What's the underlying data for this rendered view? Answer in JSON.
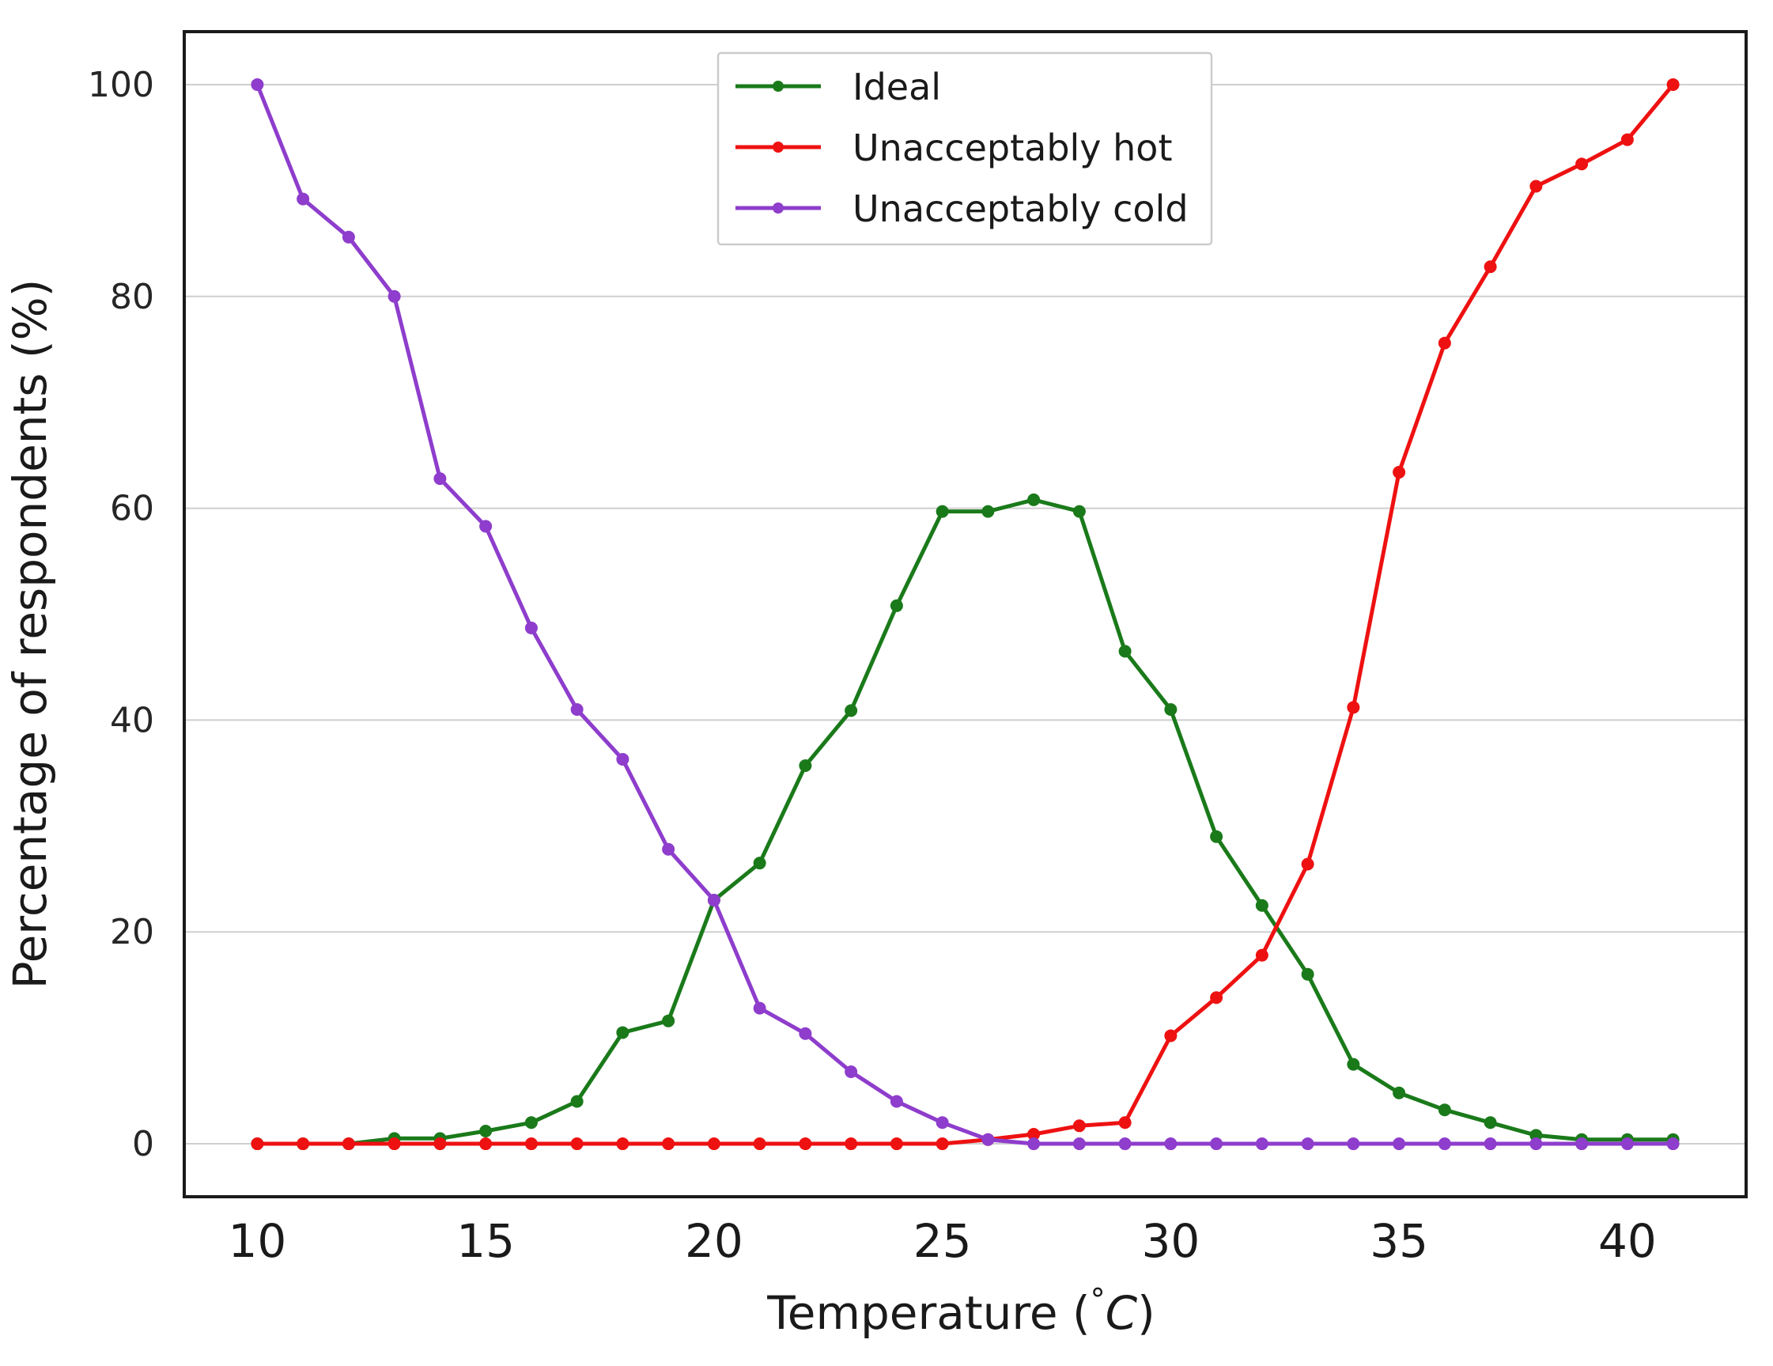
{
  "chart_data": {
    "type": "line",
    "title": "",
    "xlabel": "Temperature (°C)",
    "xlabel_main": "Temperature (",
    "xlabel_degree": "°",
    "xlabel_unit": "C",
    "xlabel_close": ")",
    "ylabel": "Percentage of respondents (%)",
    "xlim": [
      8.4,
      42.6
    ],
    "ylim": [
      -5,
      105
    ],
    "xticks": [
      10,
      15,
      20,
      25,
      30,
      35,
      40
    ],
    "yticks": [
      0,
      20,
      40,
      60,
      80,
      100
    ],
    "grid": "horizontal",
    "legend_position": "top-center",
    "x": [
      10,
      11,
      12,
      13,
      14,
      15,
      16,
      17,
      18,
      19,
      20,
      21,
      22,
      23,
      24,
      25,
      26,
      27,
      28,
      29,
      30,
      31,
      32,
      33,
      34,
      35,
      36,
      37,
      38,
      39,
      40,
      41
    ],
    "series": [
      {
        "name": "Ideal",
        "color": "#1a7a1a",
        "values": [
          0,
          0,
          0,
          0.5,
          0.5,
          1.2,
          2,
          4,
          10.5,
          11.6,
          23,
          26.5,
          35.7,
          40.9,
          50.8,
          59.7,
          59.7,
          60.8,
          59.7,
          46.5,
          41,
          29,
          22.5,
          16,
          7.5,
          4.8,
          3.2,
          2,
          0.8,
          0.4,
          0.4,
          0.4
        ]
      },
      {
        "name": "Unacceptably hot",
        "color": "#ee1111",
        "values": [
          0,
          0,
          0,
          0,
          0,
          0,
          0,
          0,
          0,
          0,
          0,
          0,
          0,
          0,
          0,
          0,
          0.4,
          0.9,
          1.7,
          2,
          10.2,
          13.8,
          17.8,
          26.4,
          41.2,
          63.4,
          75.6,
          82.8,
          90.4,
          92.5,
          94.8,
          100
        ]
      },
      {
        "name": "Unacceptably cold",
        "color": "#8e3dcc",
        "values": [
          100,
          89.2,
          85.6,
          80,
          62.8,
          58.3,
          48.7,
          41,
          36.3,
          27.8,
          23,
          12.8,
          10.4,
          6.8,
          4,
          2,
          0.4,
          0,
          0,
          0,
          0,
          0,
          0,
          0,
          0,
          0,
          0,
          0,
          0,
          0,
          0,
          0
        ]
      }
    ]
  }
}
